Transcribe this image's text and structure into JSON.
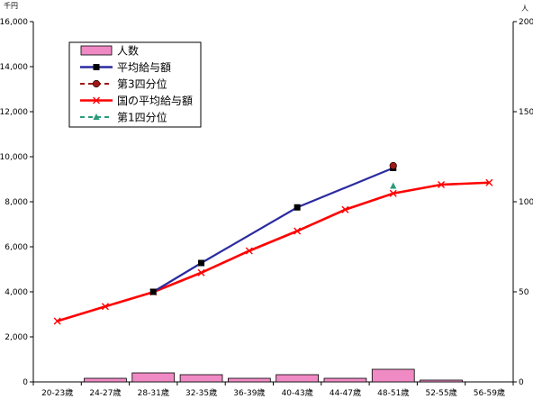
{
  "chart_data": {
    "type": "bar+line",
    "categories": [
      "20-23歳",
      "24-27歳",
      "28-31歳",
      "32-35歳",
      "36-39歳",
      "40-43歳",
      "44-47歳",
      "48-51歳",
      "52-55歳",
      "56-59歳"
    ],
    "y_left": {
      "unit": "千円",
      "min": 0,
      "max": 16000,
      "ticks": [
        "0",
        "2,000",
        "4,000",
        "6,000",
        "8,000",
        "10,000",
        "12,000",
        "14,000",
        "16,000"
      ]
    },
    "y_right": {
      "unit": "人",
      "min": 0,
      "max": 200,
      "ticks": [
        "0",
        "50",
        "100",
        "150",
        "200"
      ]
    },
    "bars": {
      "name": "人数",
      "axis": "right",
      "color": "#f08ac4",
      "values": [
        0,
        2,
        5,
        4,
        2,
        4,
        2,
        7,
        1,
        0
      ]
    },
    "series": [
      {
        "name": "平均給与額",
        "axis": "left",
        "style": "line-square",
        "color": "#2b2ba0",
        "values": [
          null,
          null,
          4000,
          5280,
          null,
          7750,
          null,
          9500,
          null,
          null
        ]
      },
      {
        "name": "第3四分位",
        "axis": "left",
        "style": "dash-circle",
        "color": "#a01818",
        "values": [
          null,
          null,
          null,
          null,
          null,
          null,
          null,
          9600,
          null,
          null
        ]
      },
      {
        "name": "国の平均給与額",
        "axis": "left",
        "style": "line-x",
        "color": "#ff0000",
        "values": [
          2700,
          3350,
          3990,
          4850,
          5820,
          6700,
          7650,
          8370,
          8760,
          8850
        ]
      },
      {
        "name": "第1四分位",
        "axis": "left",
        "style": "dash-triangle",
        "color": "#2a9a7a",
        "values": [
          null,
          null,
          null,
          null,
          null,
          null,
          null,
          8700,
          null,
          null
        ]
      }
    ],
    "legend_position": "top-left"
  }
}
